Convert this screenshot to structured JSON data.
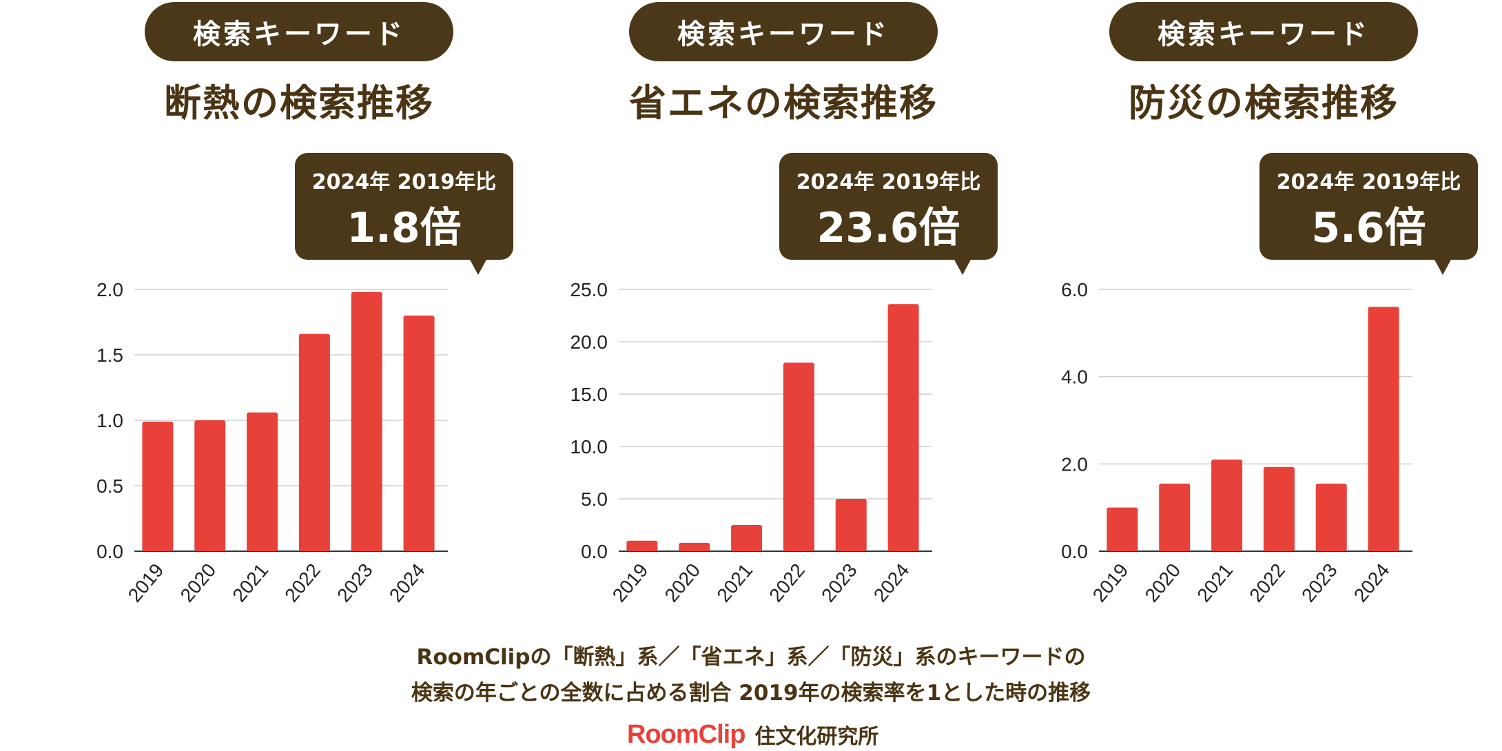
{
  "panels": [
    {
      "pill": "検索キーワード",
      "title": "断熱の検索推移",
      "callout_sub": "2024年 2019年比",
      "callout_big": "1.8倍"
    },
    {
      "pill": "検索キーワード",
      "title": "省エネの検索推移",
      "callout_sub": "2024年 2019年比",
      "callout_big": "23.6倍"
    },
    {
      "pill": "検索キーワード",
      "title": "防災の検索推移",
      "callout_sub": "2024年 2019年比",
      "callout_big": "5.6倍"
    }
  ],
  "chart_data": [
    {
      "type": "bar",
      "title": "断熱の検索推移",
      "categories": [
        "2019",
        "2020",
        "2021",
        "2022",
        "2023",
        "2024"
      ],
      "values": [
        0.99,
        1.0,
        1.06,
        1.66,
        1.98,
        1.8
      ],
      "ylim": [
        0,
        2.0
      ],
      "yticks": [
        "0.0",
        "0.5",
        "1.0",
        "1.5",
        "2.0"
      ],
      "ytick_values": [
        0,
        0.5,
        1.0,
        1.5,
        2.0
      ],
      "grid": true,
      "bar_color": "#e8413a"
    },
    {
      "type": "bar",
      "title": "省エネの検索推移",
      "categories": [
        "2019",
        "2020",
        "2021",
        "2022",
        "2023",
        "2024"
      ],
      "values": [
        1.0,
        0.8,
        2.5,
        18.0,
        5.0,
        23.6
      ],
      "ylim": [
        0,
        25.0
      ],
      "yticks": [
        "0.0",
        "5.0",
        "10.0",
        "15.0",
        "20.0",
        "25.0"
      ],
      "ytick_values": [
        0,
        5,
        10,
        15,
        20,
        25
      ],
      "grid": true,
      "bar_color": "#e8413a"
    },
    {
      "type": "bar",
      "title": "防災の検索推移",
      "categories": [
        "2019",
        "2020",
        "2021",
        "2022",
        "2023",
        "2024"
      ],
      "values": [
        1.0,
        1.55,
        2.1,
        1.93,
        1.55,
        5.6
      ],
      "ylim": [
        0,
        6.0
      ],
      "yticks": [
        "0.0",
        "2.0",
        "4.0",
        "6.0"
      ],
      "ytick_values": [
        0,
        2,
        4,
        6
      ],
      "grid": true,
      "bar_color": "#e8413a"
    }
  ],
  "caption": {
    "line1": "RoomClipの「断熱」系／「省エネ」系／「防災」系のキーワードの",
    "line2": "検索の年ごとの全数に占める割合 2019年の検索率を1とした時の推移"
  },
  "brand": {
    "logo": "RoomClip",
    "org": "住文化研究所"
  },
  "colors": {
    "bar": "#e8413a",
    "dark_brown": "#4a3818",
    "text": "#4a3413",
    "grid": "#cfcfcf"
  }
}
